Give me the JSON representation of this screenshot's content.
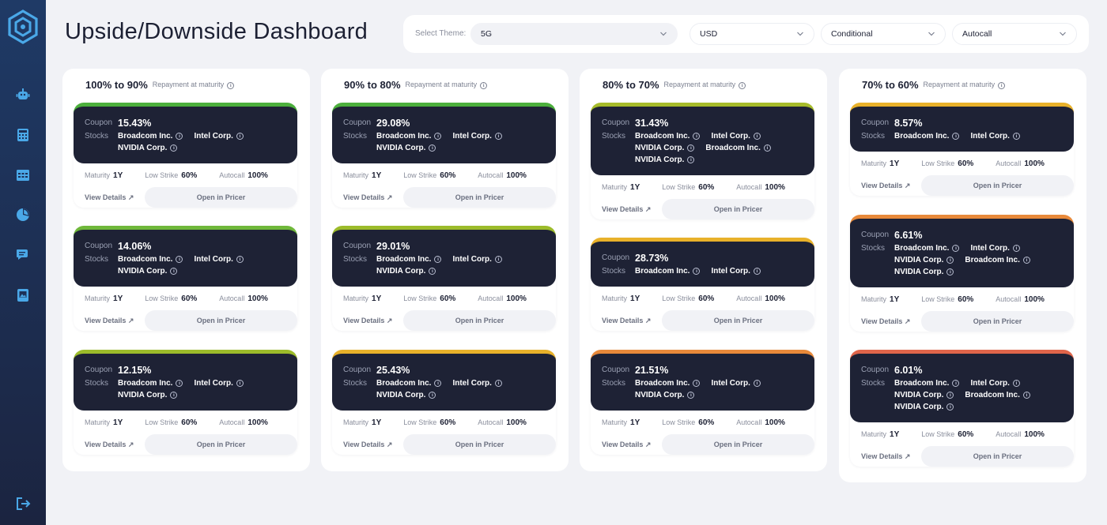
{
  "header": {
    "title": "Upside/Downside Dashboard"
  },
  "filters": {
    "theme_label": "Select Theme:",
    "theme": "5G",
    "currency": "USD",
    "type": "Conditional",
    "product": "Autocall"
  },
  "labels": {
    "coupon": "Coupon",
    "stocks": "Stocks",
    "maturity": "Maturity",
    "low_strike": "Low Strike",
    "autocall": "Autocall",
    "view_details": "View Details",
    "open_pricer": "Open in Pricer",
    "repayment": "Repayment at maturity"
  },
  "sidebar": {
    "items": [
      "robot-icon",
      "calculator-icon",
      "table-icon",
      "pie-chart-icon",
      "chat-icon",
      "image-book-icon",
      "logout-icon"
    ]
  },
  "colors": {
    "green": "#4caf3c",
    "yellowgreen": "#9cbb2a",
    "amber": "#e8b12a",
    "orange": "#e8893a",
    "red": "#e0654a",
    "card_bg": "#1e2235"
  },
  "columns": [
    {
      "title": "100% to 90%",
      "cards": [
        {
          "coupon": "15.43%",
          "color": "#4caf3c",
          "stocks": [
            "Broadcom Inc.",
            "Intel Corp.",
            "NVIDIA Corp."
          ],
          "maturity": "1Y",
          "low_strike": "60%",
          "autocall": "100%"
        },
        {
          "coupon": "14.06%",
          "color": "#6fb83a",
          "stocks": [
            "Broadcom Inc.",
            "Intel Corp.",
            "NVIDIA Corp."
          ],
          "maturity": "1Y",
          "low_strike": "60%",
          "autocall": "100%"
        },
        {
          "coupon": "12.15%",
          "color": "#9cbb2a",
          "stocks": [
            "Broadcom Inc.",
            "Intel Corp.",
            "NVIDIA Corp."
          ],
          "maturity": "1Y",
          "low_strike": "60%",
          "autocall": "100%"
        }
      ]
    },
    {
      "title": "90% to 80%",
      "cards": [
        {
          "coupon": "29.08%",
          "color": "#4caf3c",
          "stocks": [
            "Broadcom Inc.",
            "Intel Corp.",
            "NVIDIA Corp."
          ],
          "maturity": "1Y",
          "low_strike": "60%",
          "autocall": "100%"
        },
        {
          "coupon": "29.01%",
          "color": "#9cbb2a",
          "stocks": [
            "Broadcom Inc.",
            "Intel Corp.",
            "NVIDIA Corp."
          ],
          "maturity": "1Y",
          "low_strike": "60%",
          "autocall": "100%"
        },
        {
          "coupon": "25.43%",
          "color": "#e8b12a",
          "stocks": [
            "Broadcom Inc.",
            "Intel Corp.",
            "NVIDIA Corp."
          ],
          "maturity": "1Y",
          "low_strike": "60%",
          "autocall": "100%"
        }
      ]
    },
    {
      "title": "80% to 70%",
      "cards": [
        {
          "coupon": "31.43%",
          "color": "#a6bb2a",
          "stocks": [
            "Broadcom Inc.",
            "Intel Corp.",
            "NVIDIA Corp.",
            "Broadcom Inc.",
            "NVIDIA Corp."
          ],
          "maturity": "1Y",
          "low_strike": "60%",
          "autocall": "100%"
        },
        {
          "coupon": "28.73%",
          "color": "#e8b12a",
          "stocks": [
            "Broadcom Inc.",
            "Intel Corp."
          ],
          "maturity": "1Y",
          "low_strike": "60%",
          "autocall": "100%"
        },
        {
          "coupon": "21.51%",
          "color": "#e8893a",
          "stocks": [
            "Broadcom Inc.",
            "Intel Corp.",
            "NVIDIA Corp."
          ],
          "maturity": "1Y",
          "low_strike": "60%",
          "autocall": "100%"
        }
      ]
    },
    {
      "title": "70% to 60%",
      "cards": [
        {
          "coupon": "8.57%",
          "color": "#e8b12a",
          "stocks": [
            "Broadcom Inc.",
            "Intel Corp."
          ],
          "maturity": "1Y",
          "low_strike": "60%",
          "autocall": "100%"
        },
        {
          "coupon": "6.61%",
          "color": "#e8893a",
          "stocks": [
            "Broadcom Inc.",
            "Intel Corp.",
            "NVIDIA Corp.",
            "Broadcom Inc.",
            "NVIDIA Corp."
          ],
          "maturity": "1Y",
          "low_strike": "60%",
          "autocall": "100%"
        },
        {
          "coupon": "6.01%",
          "color": "#e0654a",
          "stocks": [
            "Broadcom Inc.",
            "Intel Corp.",
            "NVIDIA Corp.",
            "Broadcom Inc.",
            "NVIDIA Corp."
          ],
          "maturity": "1Y",
          "low_strike": "60%",
          "autocall": "100%"
        }
      ]
    }
  ]
}
